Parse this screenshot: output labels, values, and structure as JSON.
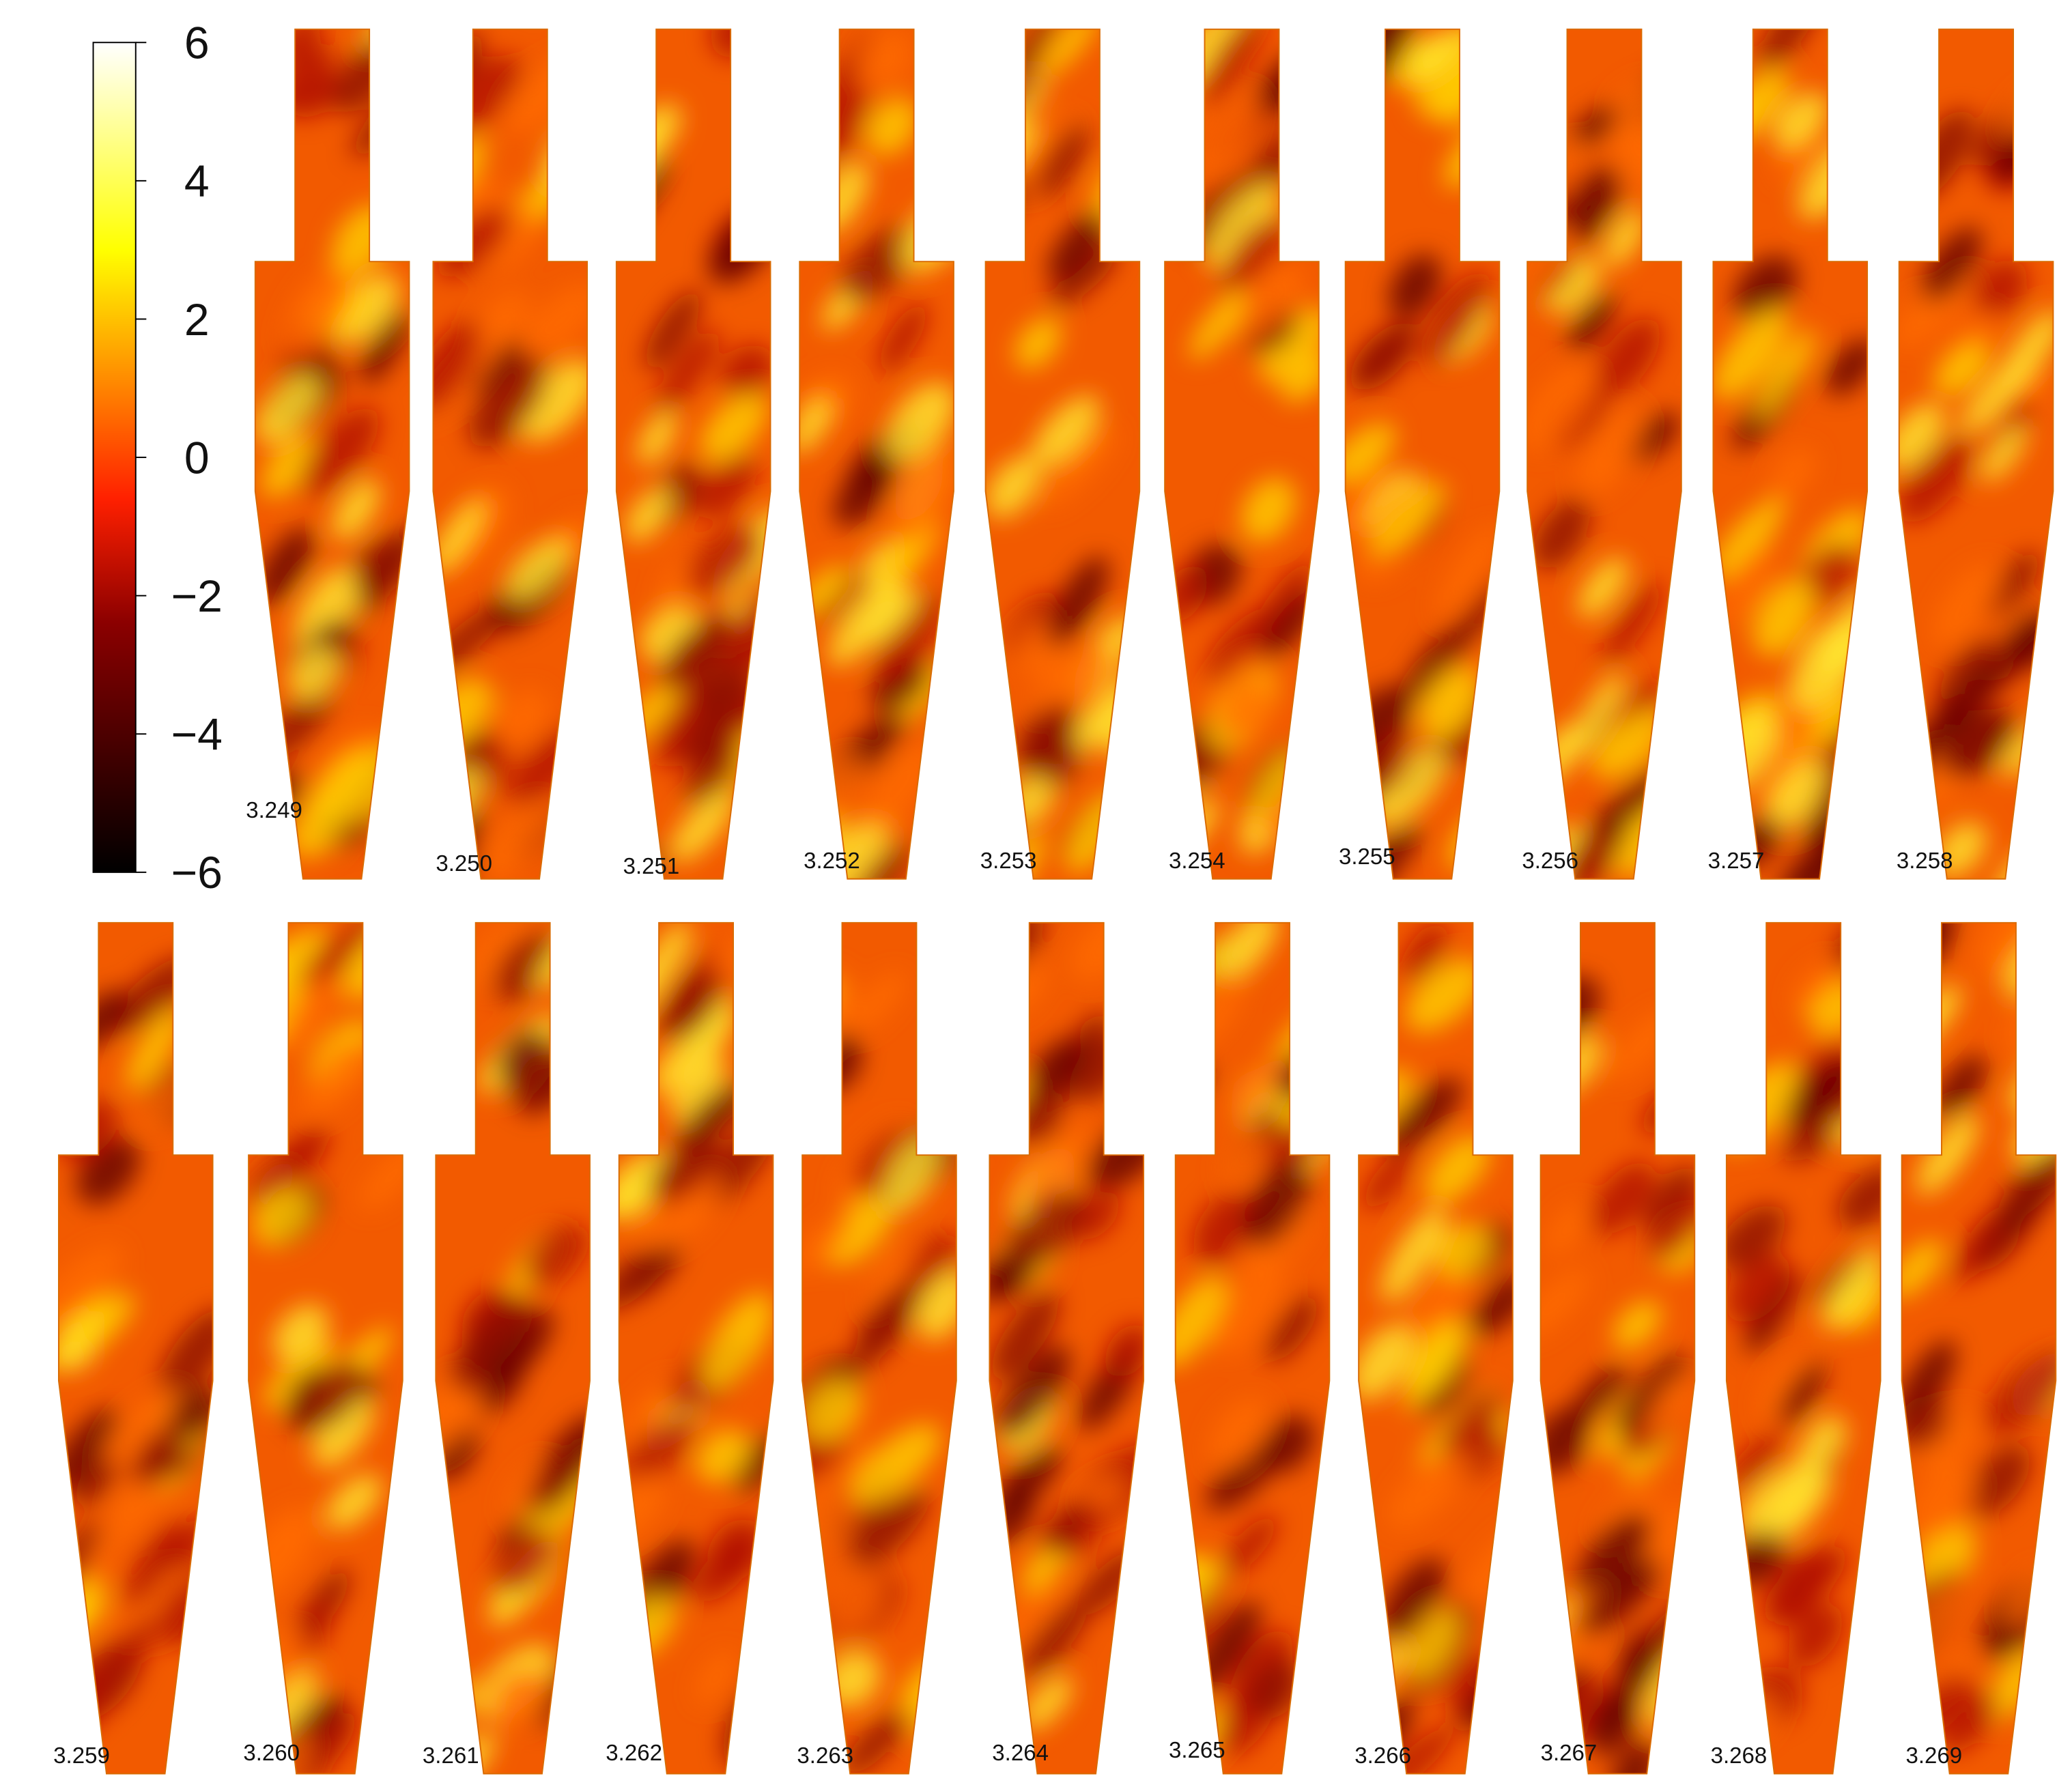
{
  "colorbar": {
    "lim": [
      -6,
      6
    ],
    "ticks": [
      {
        "value": -6,
        "label": "−6"
      },
      {
        "value": -4,
        "label": "−4"
      },
      {
        "value": -2,
        "label": "−2"
      },
      0,
      2,
      4,
      6
    ]
  },
  "rows": [
    [
      "3.249",
      "3.250",
      "3.251",
      "3.252",
      "3.253",
      "3.254",
      "3.255",
      "3.256",
      "3.257",
      "3.258"
    ],
    [
      "3.259",
      "3.260",
      "3.261",
      "3.262",
      "3.263",
      "3.264",
      "3.265",
      "3.266",
      "3.267",
      "3.268",
      "3.269"
    ]
  ]
}
